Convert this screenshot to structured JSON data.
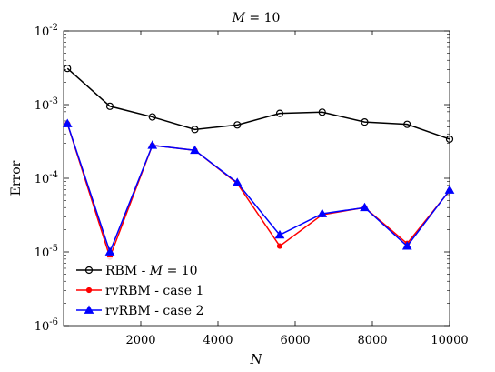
{
  "chart_data": {
    "type": "line",
    "title_prefix": "M",
    "title_suffix": " = 10",
    "xlabel": "N",
    "ylabel": "Error",
    "xlim": [
      0,
      10000
    ],
    "ylim_exponent": [
      -6,
      -2
    ],
    "y_scale": "log",
    "grid": false,
    "legend_position": "bottom-left",
    "x_ticks": [
      2000,
      4000,
      6000,
      8000,
      10000
    ],
    "y_ticks": [
      {
        "value": 1e-06,
        "base": "10",
        "exp": "-6"
      },
      {
        "value": 1e-05,
        "base": "10",
        "exp": "-5"
      },
      {
        "value": 0.0001,
        "base": "10",
        "exp": "-4"
      },
      {
        "value": 0.001,
        "base": "10",
        "exp": "-3"
      },
      {
        "value": 0.01,
        "base": "10",
        "exp": "-2"
      }
    ],
    "x": [
      100,
      1200,
      2300,
      3400,
      4500,
      5600,
      6700,
      7800,
      8900,
      10000
    ],
    "series": [
      {
        "name": "RBM - M = 10",
        "legend_prefix": "RBM - ",
        "legend_italic": "M",
        "legend_suffix": " = 10",
        "color": "#000000",
        "marker": "circle",
        "values": [
          0.0031,
          0.00095,
          0.00068,
          0.00046,
          0.00053,
          0.00076,
          0.00079,
          0.00058,
          0.00054,
          0.00034
        ]
      },
      {
        "name": "rvRBM - case 1",
        "legend_prefix": "rvRBM - case 1",
        "legend_italic": "",
        "legend_suffix": "",
        "color": "#ff0000",
        "marker": "dot",
        "values": [
          0.00055,
          8.5e-06,
          0.00028,
          0.00024,
          8.5e-05,
          1.2e-05,
          3.2e-05,
          4e-05,
          1.3e-05,
          6.8e-05
        ]
      },
      {
        "name": "rvRBM - case 2",
        "legend_prefix": "rvRBM - case 2",
        "legend_italic": "",
        "legend_suffix": "",
        "color": "#0000ff",
        "marker": "triangle",
        "values": [
          0.00055,
          1e-05,
          0.00028,
          0.00024,
          8.7e-05,
          1.7e-05,
          3.3e-05,
          4e-05,
          1.2e-05,
          6.9e-05
        ]
      }
    ]
  }
}
